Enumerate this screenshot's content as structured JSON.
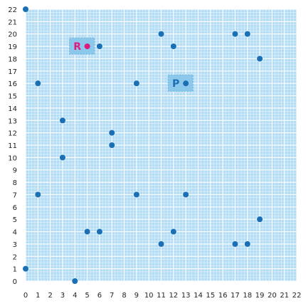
{
  "chart_data": {
    "type": "scatter",
    "title": "",
    "xlabel": "",
    "ylabel": "",
    "xlim": [
      0,
      22
    ],
    "ylim": [
      0,
      22
    ],
    "x_ticks": [
      "0",
      "1",
      "2",
      "3",
      "4",
      "5",
      "6",
      "7",
      "8",
      "9",
      "10",
      "11",
      "12",
      "13",
      "14",
      "15",
      "16",
      "17",
      "18",
      "19",
      "20",
      "21",
      "22"
    ],
    "y_ticks": [
      "0",
      "1",
      "2",
      "3",
      "4",
      "5",
      "6",
      "7",
      "8",
      "9",
      "10",
      "11",
      "12",
      "13",
      "14",
      "15",
      "16",
      "17",
      "18",
      "19",
      "20",
      "21",
      "22"
    ],
    "grid": true,
    "colors": {
      "background": "#b3dcf5",
      "grid": "#ffffff",
      "point": "#1a6fb5",
      "highlight_box": "#8cc8ec",
      "highlight_border": "#6aaed6",
      "label_P": "#1a6fb5",
      "label_R": "#e0197d",
      "point_R": "#e0197d"
    },
    "points": [
      {
        "x": 0,
        "y": 22
      },
      {
        "x": 0,
        "y": 1
      },
      {
        "x": 1,
        "y": 16
      },
      {
        "x": 1,
        "y": 7
      },
      {
        "x": 3,
        "y": 13
      },
      {
        "x": 3,
        "y": 10
      },
      {
        "x": 4,
        "y": 0
      },
      {
        "x": 5,
        "y": 4
      },
      {
        "x": 6,
        "y": 19
      },
      {
        "x": 6,
        "y": 4
      },
      {
        "x": 7,
        "y": 12
      },
      {
        "x": 7,
        "y": 11
      },
      {
        "x": 9,
        "y": 16
      },
      {
        "x": 9,
        "y": 7
      },
      {
        "x": 11,
        "y": 20
      },
      {
        "x": 11,
        "y": 3
      },
      {
        "x": 12,
        "y": 19
      },
      {
        "x": 12,
        "y": 4
      },
      {
        "x": 13,
        "y": 7
      },
      {
        "x": 17,
        "y": 20
      },
      {
        "x": 17,
        "y": 3
      },
      {
        "x": 18,
        "y": 20
      },
      {
        "x": 18,
        "y": 3
      },
      {
        "x": 19,
        "y": 18
      },
      {
        "x": 19,
        "y": 5
      }
    ],
    "labeled_points": [
      {
        "label": "P",
        "x": 13,
        "y": 16
      },
      {
        "label": "R",
        "x": 5,
        "y": 19
      }
    ]
  }
}
